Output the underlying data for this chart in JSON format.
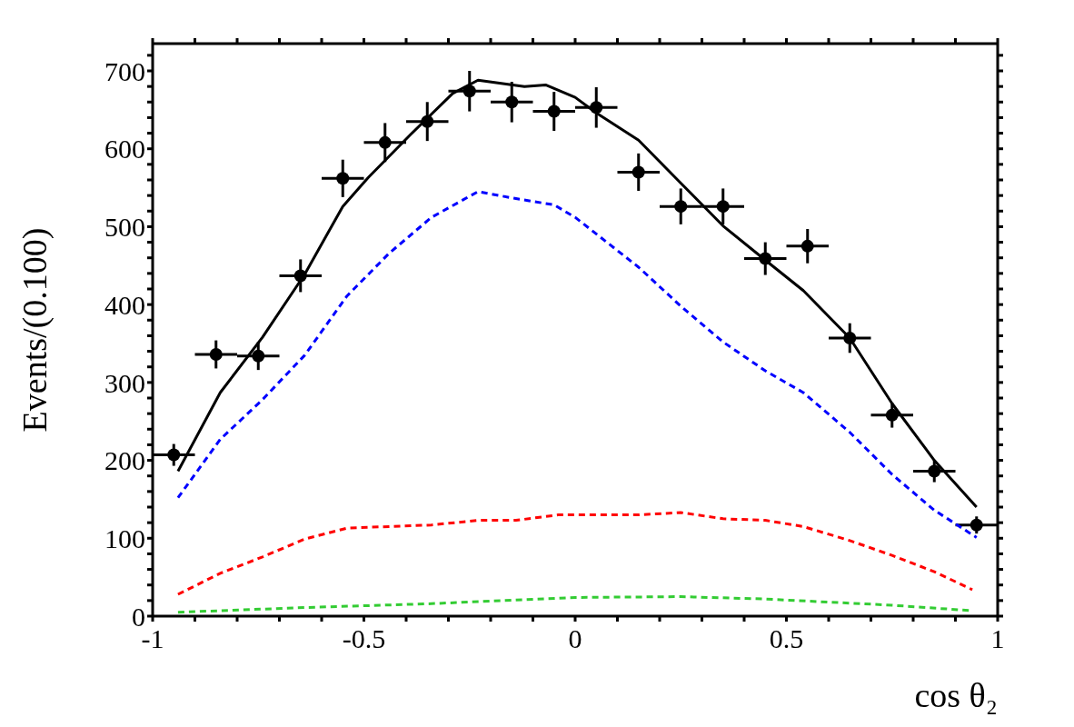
{
  "chart_data": {
    "type": "scatter",
    "xlabel": "cos θ₂",
    "ylabel": "Events/(0.100)",
    "xlim": [
      -1,
      1
    ],
    "xticks": [
      -1,
      {
        "value": -0.9,
        "label": null
      },
      {
        "value": -0.8,
        "label": null
      },
      {
        "value": -0.7,
        "label": null
      },
      {
        "value": -0.6,
        "label": null
      },
      -0.5,
      {
        "value": -0.4,
        "label": null
      },
      {
        "value": -0.3,
        "label": null
      },
      {
        "value": -0.2,
        "label": null
      },
      {
        "value": -0.1,
        "label": null
      },
      0,
      {
        "value": 0.1,
        "label": null
      },
      {
        "value": 0.2,
        "label": null
      },
      {
        "value": 0.3,
        "label": null
      },
      {
        "value": 0.4,
        "label": null
      },
      0.5,
      {
        "value": 0.6,
        "label": null
      },
      {
        "value": 0.7,
        "label": null
      },
      {
        "value": 0.8,
        "label": null
      },
      {
        "value": 0.9,
        "label": null
      },
      1
    ],
    "ylim": [
      0,
      735
    ],
    "yticks": [
      0,
      {
        "value": 20,
        "label": null
      },
      {
        "value": 40,
        "label": null
      },
      {
        "value": 60,
        "label": null
      },
      {
        "value": 80,
        "label": null
      },
      100,
      {
        "value": 120,
        "label": null
      },
      {
        "value": 140,
        "label": null
      },
      {
        "value": 160,
        "label": null
      },
      {
        "value": 180,
        "label": null
      },
      200,
      {
        "value": 220,
        "label": null
      },
      {
        "value": 240,
        "label": null
      },
      {
        "value": 260,
        "label": null
      },
      {
        "value": 280,
        "label": null
      },
      300,
      {
        "value": 320,
        "label": null
      },
      {
        "value": 340,
        "label": null
      },
      {
        "value": 360,
        "label": null
      },
      {
        "value": 380,
        "label": null
      },
      400,
      {
        "value": 420,
        "label": null
      },
      {
        "value": 440,
        "label": null
      },
      {
        "value": 460,
        "label": null
      },
      {
        "value": 480,
        "label": null
      },
      500,
      {
        "value": 520,
        "label": null
      },
      {
        "value": 540,
        "label": null
      },
      {
        "value": 560,
        "label": null
      },
      {
        "value": 580,
        "label": null
      },
      600,
      {
        "value": 620,
        "label": null
      },
      {
        "value": 640,
        "label": null
      },
      {
        "value": 660,
        "label": null
      },
      {
        "value": 680,
        "label": null
      },
      700,
      {
        "value": 720,
        "label": null
      }
    ],
    "series": [
      {
        "color": "#000000",
        "marker": "circle",
        "x": [
          -0.95,
          -0.85,
          -0.75,
          -0.65,
          -0.55,
          -0.45,
          -0.35,
          -0.25,
          -0.15,
          -0.05,
          0.05,
          0.15,
          0.25,
          0.35,
          0.45,
          0.55,
          0.65,
          0.75,
          0.85,
          0.95
        ],
        "values": [
          207,
          336,
          334,
          437,
          562,
          608,
          635,
          674,
          660,
          648,
          653,
          570,
          526,
          526,
          459,
          475,
          357,
          258,
          186,
          117
        ],
        "errors": [
          14,
          18,
          18,
          21,
          24,
          25,
          25,
          26,
          26,
          25,
          26,
          24,
          23,
          23,
          21,
          22,
          19,
          16,
          14,
          11
        ],
        "xerrors": [
          0.05,
          0.05,
          0.05,
          0.05,
          0.05,
          0.05,
          0.05,
          0.05,
          0.05,
          0.05,
          0.05,
          0.05,
          0.05,
          0.05,
          0.05,
          0.05,
          0.05,
          0.05,
          0.05,
          0.05
        ]
      },
      {
        "type": "line",
        "color": "#000000",
        "marker": "none",
        "line_style": "solid",
        "x": [
          -0.94,
          -0.84,
          -0.74,
          -0.64,
          -0.55,
          -0.49,
          -0.39,
          -0.29,
          -0.23,
          -0.12,
          -0.07,
          0.0,
          0.05,
          0.15,
          0.25,
          0.35,
          0.45,
          0.54,
          0.65,
          0.75,
          0.85,
          0.95
        ],
        "values": [
          186,
          287,
          358,
          439,
          526,
          563,
          618,
          671,
          688,
          680,
          682,
          666,
          646,
          611,
          556,
          501,
          457,
          418,
          357,
          273,
          200,
          140
        ]
      },
      {
        "type": "line",
        "color": "#0000ff",
        "marker": "none",
        "line_style": "dashed",
        "x": [
          -0.94,
          -0.84,
          -0.74,
          -0.64,
          -0.54,
          -0.44,
          -0.34,
          -0.23,
          -0.14,
          -0.05,
          0.0,
          0.15,
          0.25,
          0.35,
          0.45,
          0.54,
          0.65,
          0.75,
          0.85,
          0.95
        ],
        "values": [
          152,
          227,
          278,
          335,
          411,
          466,
          512,
          545,
          536,
          528,
          512,
          448,
          398,
          352,
          315,
          287,
          236,
          182,
          136,
          101
        ]
      },
      {
        "type": "line",
        "color": "#ff0000",
        "marker": "none",
        "line_style": "dashed",
        "x": [
          -0.94,
          -0.84,
          -0.74,
          -0.64,
          -0.54,
          -0.44,
          -0.34,
          -0.23,
          -0.14,
          -0.04,
          0.15,
          0.25,
          0.35,
          0.45,
          0.54,
          0.65,
          0.75,
          0.85,
          0.94
        ],
        "values": [
          28,
          55,
          76,
          99,
          113,
          115,
          117,
          123,
          123,
          130,
          130,
          133,
          125,
          123,
          115,
          97,
          78,
          57,
          34
        ]
      },
      {
        "type": "line",
        "color": "#33cc33",
        "marker": "none",
        "line_style": "dashed",
        "x": [
          -0.94,
          -0.64,
          -0.34,
          0.0,
          0.25,
          0.45,
          0.75,
          0.94
        ],
        "values": [
          5,
          11,
          16,
          24,
          25,
          22,
          14,
          7
        ]
      }
    ]
  }
}
